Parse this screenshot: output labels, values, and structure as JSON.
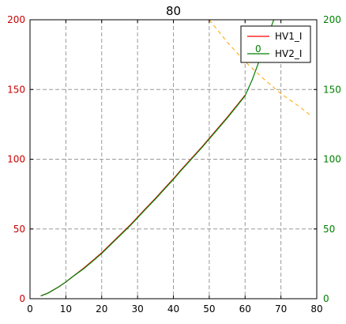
{
  "chart_data": {
    "type": "line",
    "title": "80",
    "xlim": [
      0,
      80
    ],
    "ylim": [
      0,
      200
    ],
    "y2lim": [
      0,
      200
    ],
    "x_ticks": [
      "0",
      "10",
      "20",
      "30",
      "40",
      "50",
      "60",
      "70",
      "80"
    ],
    "y_ticks": [
      "0",
      "50",
      "100",
      "150",
      "200"
    ],
    "y2_ticks": [
      "0",
      "50",
      "100",
      "150",
      "200"
    ],
    "grid": true,
    "legend_placement": "top-right",
    "legend_extra_label": "0",
    "series": [
      {
        "name": "HV1_I",
        "axis": "left",
        "color": "#ff0000",
        "style": "solid",
        "x": [
          3,
          5,
          8,
          10,
          12,
          15,
          18,
          20,
          22,
          25,
          28,
          30,
          32,
          35,
          38,
          40,
          42,
          45,
          48,
          50,
          52,
          55,
          58,
          60
        ],
        "y": [
          2,
          4,
          8.5,
          12,
          16,
          22,
          28.5,
          33,
          38,
          45.5,
          53,
          58.5,
          64,
          72,
          80.5,
          86,
          92,
          100.5,
          109,
          115,
          121,
          130,
          139.5,
          146
        ]
      },
      {
        "name": "HV2_I",
        "axis": "right",
        "color": "#008000",
        "style": "solid",
        "x": [
          3,
          5,
          8,
          10,
          12,
          15,
          18,
          20,
          22,
          25,
          28,
          30,
          32,
          35,
          38,
          40,
          42,
          45,
          48,
          50,
          52,
          55,
          58,
          60,
          62,
          64,
          66,
          68
        ],
        "y": [
          2,
          4,
          8.5,
          12,
          16,
          21.5,
          28,
          32.5,
          37.5,
          45,
          52.5,
          58,
          63.5,
          71.5,
          80,
          85.5,
          91.5,
          100,
          108.5,
          114.5,
          120.5,
          129.5,
          139,
          145.5,
          157,
          171,
          186,
          200
        ]
      },
      {
        "name": "",
        "axis": "left",
        "color": "#ffa500",
        "style": "dashed",
        "x": [
          50,
          55,
          60,
          65,
          70,
          75,
          78
        ],
        "y": [
          200,
          184,
          170,
          158,
          147,
          138,
          132
        ]
      }
    ]
  }
}
